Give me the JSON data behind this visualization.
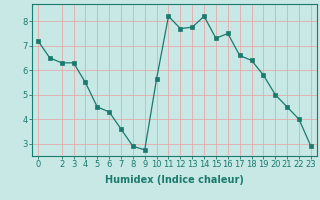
{
  "x": [
    0,
    1,
    2,
    3,
    4,
    5,
    6,
    7,
    8,
    9,
    10,
    11,
    12,
    13,
    14,
    15,
    16,
    17,
    18,
    19,
    20,
    21,
    22,
    23
  ],
  "y": [
    7.2,
    6.5,
    6.3,
    6.3,
    5.5,
    4.5,
    4.3,
    3.6,
    2.9,
    2.75,
    5.65,
    8.2,
    7.7,
    7.75,
    8.2,
    7.3,
    7.5,
    6.6,
    6.4,
    5.8,
    5.0,
    4.5,
    4.0,
    2.9
  ],
  "line_color": "#1a7a6e",
  "marker": "s",
  "marker_size": 2.5,
  "bg_color": "#c8e8e5",
  "grid_color": "#e8a0a0",
  "xlabel": "Humidex (Indice chaleur)",
  "xlabel_fontsize": 7,
  "tick_fontsize": 6,
  "ylim": [
    2.5,
    8.7
  ],
  "xlim": [
    -0.5,
    23.5
  ],
  "yticks": [
    3,
    4,
    5,
    6,
    7,
    8
  ],
  "xticks": [
    0,
    2,
    3,
    4,
    5,
    6,
    7,
    8,
    9,
    10,
    11,
    12,
    13,
    14,
    15,
    16,
    17,
    18,
    19,
    20,
    21,
    22,
    23
  ]
}
